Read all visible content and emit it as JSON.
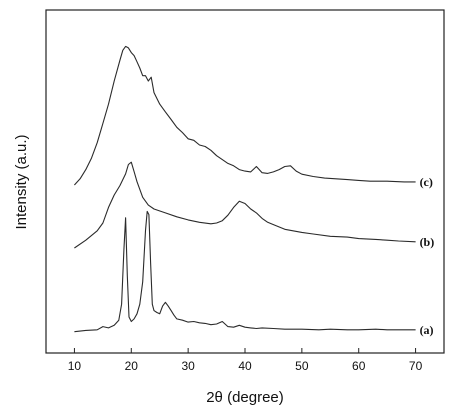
{
  "chart_data": {
    "type": "line",
    "xlabel": "2θ (degree)",
    "ylabel": "Intensity (a.u.)",
    "xlim": [
      5,
      75
    ],
    "x_ticks": [
      10,
      20,
      30,
      40,
      50,
      60,
      70
    ],
    "y_ticks_shown": false,
    "grid": false,
    "series": [
      {
        "name": "(a)",
        "x": [
          10,
          12,
          14,
          15,
          16,
          17,
          17.8,
          18.3,
          18.7,
          19.0,
          19.3,
          19.6,
          20.0,
          20.5,
          21.0,
          21.5,
          22.0,
          22.5,
          22.8,
          23.1,
          23.4,
          23.7,
          24.0,
          24.5,
          25.0,
          25.5,
          26.0,
          26.5,
          27.0,
          27.5,
          28.0,
          29.0,
          30.0,
          31.0,
          32.0,
          33.0,
          34.0,
          35.0,
          36.0,
          37.0,
          38.0,
          39.0,
          40.0,
          41.0,
          42.0,
          43.0,
          45.0,
          47.0,
          50.0,
          53.0,
          55.0,
          58.0,
          60.0,
          63.0,
          65.0,
          67.0,
          70.0
        ],
        "values": [
          0.02,
          0.04,
          0.05,
          0.1,
          0.08,
          0.12,
          0.2,
          0.45,
          1.3,
          1.8,
          0.9,
          0.25,
          0.18,
          0.22,
          0.3,
          0.45,
          0.8,
          1.6,
          1.9,
          1.85,
          1.1,
          0.45,
          0.35,
          0.32,
          0.3,
          0.42,
          0.48,
          0.42,
          0.35,
          0.28,
          0.22,
          0.2,
          0.17,
          0.18,
          0.16,
          0.15,
          0.13,
          0.14,
          0.18,
          0.1,
          0.09,
          0.12,
          0.09,
          0.08,
          0.07,
          0.08,
          0.07,
          0.06,
          0.06,
          0.05,
          0.06,
          0.05,
          0.05,
          0.06,
          0.05,
          0.05,
          0.05
        ]
      },
      {
        "name": "(b)",
        "x": [
          10,
          12,
          14,
          15,
          16,
          17,
          18,
          19,
          19.5,
          20,
          20.5,
          21,
          22,
          23,
          24,
          26,
          28,
          30,
          32,
          34,
          35,
          36,
          37,
          38,
          39,
          40,
          41,
          42,
          43,
          44,
          45,
          47,
          50,
          52,
          55,
          58,
          60,
          63,
          65,
          67,
          70
        ],
        "values": [
          0.0,
          0.1,
          0.22,
          0.32,
          0.52,
          0.68,
          0.8,
          0.95,
          1.07,
          1.1,
          0.98,
          0.85,
          0.65,
          0.55,
          0.5,
          0.45,
          0.4,
          0.36,
          0.33,
          0.31,
          0.32,
          0.35,
          0.42,
          0.52,
          0.6,
          0.57,
          0.5,
          0.45,
          0.38,
          0.33,
          0.3,
          0.24,
          0.2,
          0.18,
          0.15,
          0.14,
          0.12,
          0.11,
          0.1,
          0.09,
          0.08
        ]
      },
      {
        "name": "(c)",
        "x": [
          10,
          11,
          12,
          13,
          14,
          15,
          16,
          17,
          18,
          18.5,
          19,
          19.5,
          20,
          20.5,
          21,
          21.5,
          22,
          22.5,
          23,
          23.5,
          24,
          25,
          26,
          27,
          28,
          29,
          30,
          31,
          32,
          33,
          34,
          35,
          36,
          37,
          38,
          39,
          40,
          41,
          42,
          43,
          44,
          45,
          46,
          47,
          48,
          49,
          50,
          52,
          54,
          56,
          58,
          60,
          62,
          65,
          68,
          70
        ],
        "values": [
          0.0,
          0.08,
          0.2,
          0.35,
          0.55,
          0.8,
          1.05,
          1.35,
          1.62,
          1.75,
          1.8,
          1.78,
          1.72,
          1.68,
          1.6,
          1.52,
          1.42,
          1.42,
          1.35,
          1.4,
          1.2,
          1.05,
          0.95,
          0.85,
          0.75,
          0.68,
          0.6,
          0.58,
          0.52,
          0.5,
          0.45,
          0.38,
          0.33,
          0.28,
          0.25,
          0.2,
          0.18,
          0.17,
          0.24,
          0.16,
          0.15,
          0.17,
          0.2,
          0.24,
          0.25,
          0.18,
          0.14,
          0.11,
          0.09,
          0.08,
          0.07,
          0.06,
          0.05,
          0.05,
          0.04,
          0.04
        ]
      }
    ]
  }
}
